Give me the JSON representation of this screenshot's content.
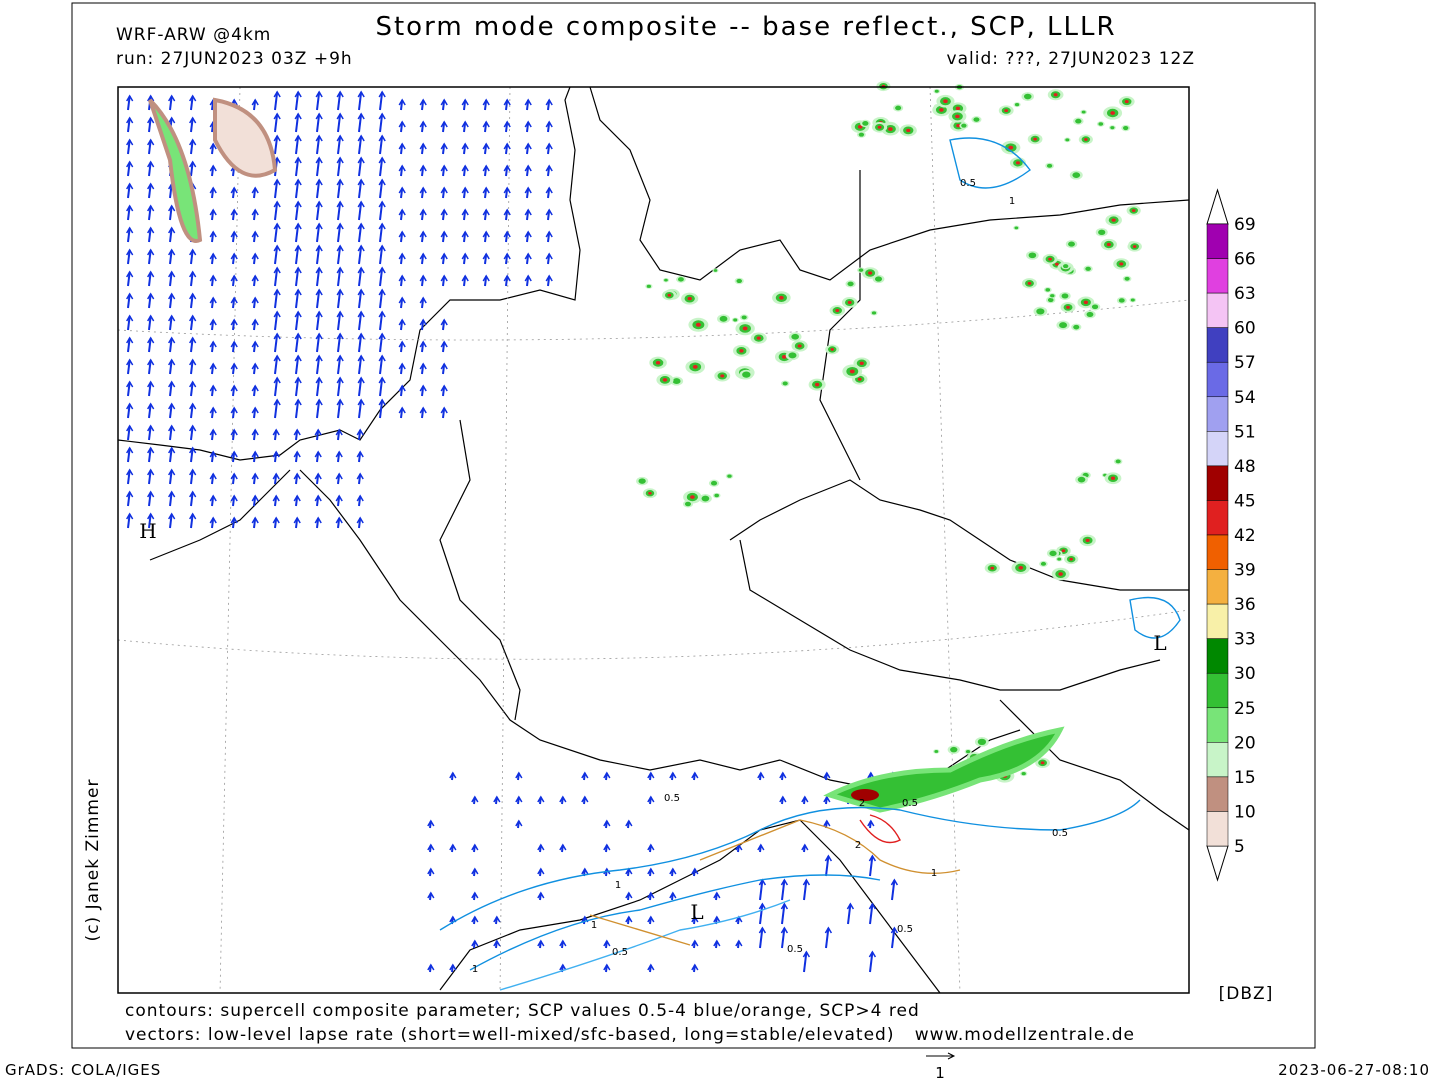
{
  "header": {
    "model": "WRF-ARW @4km",
    "title": "Storm mode composite -- base reflect., SCP, LLLR",
    "run": "run: 27JUN2023 03Z +9h",
    "valid": "valid: ???, 27JUN2023 12Z"
  },
  "credit": "(c) Janek Zimmer",
  "map_labels": [
    "H",
    "L",
    "L"
  ],
  "contour_labels": [
    "0.5",
    "1",
    "0.5",
    "2",
    "0.5",
    "1",
    "0.5",
    "2",
    "1",
    "0.5",
    "1",
    "0.5",
    "0.5",
    "1",
    "L"
  ],
  "colorbar": {
    "levels": [
      69,
      66,
      63,
      60,
      57,
      54,
      51,
      48,
      45,
      42,
      39,
      36,
      33,
      30,
      25,
      20,
      15,
      10,
      5
    ],
    "colors": [
      "#a000b0",
      "#e040e0",
      "#f4c4f4",
      "#4040c0",
      "#6a6ae6",
      "#a0a0f0",
      "#d4d4f8",
      "#a00000",
      "#e02020",
      "#f06000",
      "#f4b040",
      "#f8f0a8",
      "#008800",
      "#34c034",
      "#78e478",
      "#c8f4c8",
      "#c09080",
      "#f2e0d8"
    ],
    "unit": "[DBZ]"
  },
  "footer": {
    "contours": "contours: supercell composite parameter; SCP values 0.5-4 blue/orange, SCP>4 red",
    "vectors": "vectors: low-level lapse rate (short=well-mixed/sfc-based, long=stable/elevated)",
    "website": "www.modellzentrale.de",
    "software": "GrADS: COLA/IGES",
    "vector_scale": "1",
    "timestamp": "2023-06-27-08:10"
  }
}
